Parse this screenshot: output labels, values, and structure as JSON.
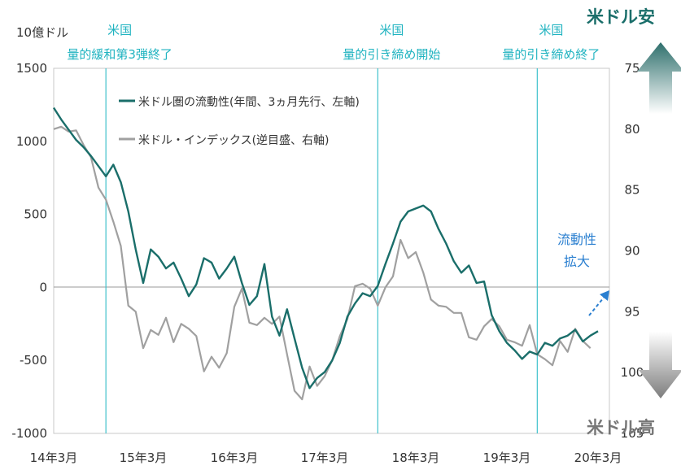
{
  "chart_data": {
    "type": "line",
    "left_unit_label": "10億ドル",
    "x_tick_labels": [
      "14年3月",
      "15年3月",
      "16年3月",
      "17年3月",
      "18年3月",
      "19年3月",
      "20年3月"
    ],
    "x_tick_dates": [
      "2014-03",
      "2015-03",
      "2016-03",
      "2017-03",
      "2018-03",
      "2019-03",
      "2020-03"
    ],
    "left_axis": {
      "min": -1000,
      "max": 1500,
      "ticks": [
        -1000,
        -500,
        0,
        500,
        1000,
        1500
      ]
    },
    "right_axis": {
      "min": 75,
      "max": 105,
      "inverted": true,
      "ticks": [
        75,
        80,
        85,
        90,
        95,
        100,
        105
      ]
    },
    "grid": "zero-line only",
    "legend_position": "top-left",
    "events": [
      {
        "date": "2014-10",
        "line1": "米国",
        "line2": "量的緩和第3弾終了"
      },
      {
        "date": "2017-10",
        "line1": "米国",
        "line2": "量的引き締め開始"
      },
      {
        "date": "2019-07",
        "line1": "米国",
        "line2": "量的引き締め終了"
      }
    ],
    "series": [
      {
        "name": "米ドル圏の流動性(年間、3ヵ月先行、左軸)",
        "axis": "left",
        "color": "#1a6e6a",
        "points": [
          [
            "2014-03",
            1230
          ],
          [
            "2014-04",
            1150
          ],
          [
            "2014-05",
            1080
          ],
          [
            "2014-06",
            1010
          ],
          [
            "2014-07",
            960
          ],
          [
            "2014-08",
            900
          ],
          [
            "2014-09",
            830
          ],
          [
            "2014-10",
            760
          ],
          [
            "2014-11",
            840
          ],
          [
            "2014-12",
            720
          ],
          [
            "2015-01",
            520
          ],
          [
            "2015-02",
            260
          ],
          [
            "2015-03",
            30
          ],
          [
            "2015-04",
            260
          ],
          [
            "2015-05",
            210
          ],
          [
            "2015-06",
            130
          ],
          [
            "2015-07",
            170
          ],
          [
            "2015-08",
            60
          ],
          [
            "2015-09",
            -60
          ],
          [
            "2015-10",
            20
          ],
          [
            "2015-11",
            200
          ],
          [
            "2015-12",
            170
          ],
          [
            "2016-01",
            60
          ],
          [
            "2016-02",
            130
          ],
          [
            "2016-03",
            210
          ],
          [
            "2016-04",
            30
          ],
          [
            "2016-05",
            -120
          ],
          [
            "2016-06",
            -60
          ],
          [
            "2016-07",
            160
          ],
          [
            "2016-08",
            -200
          ],
          [
            "2016-09",
            -330
          ],
          [
            "2016-10",
            -150
          ],
          [
            "2016-11",
            -350
          ],
          [
            "2016-12",
            -550
          ],
          [
            "2017-01",
            -690
          ],
          [
            "2017-02",
            -620
          ],
          [
            "2017-03",
            -580
          ],
          [
            "2017-04",
            -500
          ],
          [
            "2017-05",
            -380
          ],
          [
            "2017-06",
            -200
          ],
          [
            "2017-07",
            -110
          ],
          [
            "2017-08",
            -40
          ],
          [
            "2017-09",
            -60
          ],
          [
            "2017-10",
            10
          ],
          [
            "2017-11",
            160
          ],
          [
            "2017-12",
            300
          ],
          [
            "2018-01",
            450
          ],
          [
            "2018-02",
            520
          ],
          [
            "2018-03",
            540
          ],
          [
            "2018-04",
            560
          ],
          [
            "2018-05",
            520
          ],
          [
            "2018-06",
            400
          ],
          [
            "2018-07",
            300
          ],
          [
            "2018-08",
            180
          ],
          [
            "2018-09",
            100
          ],
          [
            "2018-10",
            150
          ],
          [
            "2018-11",
            30
          ],
          [
            "2018-12",
            40
          ],
          [
            "2019-01",
            -190
          ],
          [
            "2019-02",
            -300
          ],
          [
            "2019-03",
            -380
          ],
          [
            "2019-04",
            -430
          ],
          [
            "2019-05",
            -490
          ],
          [
            "2019-06",
            -440
          ],
          [
            "2019-07",
            -460
          ],
          [
            "2019-08",
            -380
          ],
          [
            "2019-09",
            -400
          ],
          [
            "2019-10",
            -350
          ],
          [
            "2019-11",
            -330
          ],
          [
            "2019-12",
            -290
          ],
          [
            "2020-01",
            -370
          ],
          [
            "2020-02",
            -330
          ],
          [
            "2020-03",
            -300
          ]
        ]
      },
      {
        "name": "米ドル・インデックス(逆目盛、右軸)",
        "axis": "right",
        "color": "#a0a0a0",
        "points": [
          [
            "2014-03",
            80.0
          ],
          [
            "2014-04",
            79.8
          ],
          [
            "2014-05",
            80.2
          ],
          [
            "2014-06",
            80.1
          ],
          [
            "2014-07",
            81.3
          ],
          [
            "2014-08",
            82.3
          ],
          [
            "2014-09",
            84.8
          ],
          [
            "2014-10",
            85.8
          ],
          [
            "2014-11",
            87.6
          ],
          [
            "2014-12",
            89.6
          ],
          [
            "2015-01",
            94.5
          ],
          [
            "2015-02",
            95.0
          ],
          [
            "2015-03",
            98.0
          ],
          [
            "2015-04",
            96.5
          ],
          [
            "2015-05",
            96.9
          ],
          [
            "2015-06",
            95.5
          ],
          [
            "2015-07",
            97.5
          ],
          [
            "2015-08",
            96.0
          ],
          [
            "2015-09",
            96.4
          ],
          [
            "2015-10",
            97.0
          ],
          [
            "2015-11",
            99.9
          ],
          [
            "2015-12",
            98.7
          ],
          [
            "2016-01",
            99.6
          ],
          [
            "2016-02",
            98.4
          ],
          [
            "2016-03",
            94.6
          ],
          [
            "2016-04",
            93.1
          ],
          [
            "2016-05",
            95.9
          ],
          [
            "2016-06",
            96.1
          ],
          [
            "2016-07",
            95.5
          ],
          [
            "2016-08",
            96.0
          ],
          [
            "2016-09",
            95.4
          ],
          [
            "2016-10",
            98.5
          ],
          [
            "2016-11",
            101.5
          ],
          [
            "2016-12",
            102.2
          ],
          [
            "2017-01",
            99.5
          ],
          [
            "2017-02",
            101.1
          ],
          [
            "2017-03",
            100.3
          ],
          [
            "2017-04",
            99.0
          ],
          [
            "2017-05",
            97.0
          ],
          [
            "2017-06",
            95.6
          ],
          [
            "2017-07",
            92.9
          ],
          [
            "2017-08",
            92.7
          ],
          [
            "2017-09",
            93.1
          ],
          [
            "2017-10",
            94.5
          ],
          [
            "2017-11",
            93.0
          ],
          [
            "2017-12",
            92.1
          ],
          [
            "2018-01",
            89.1
          ],
          [
            "2018-02",
            90.6
          ],
          [
            "2018-03",
            90.1
          ],
          [
            "2018-04",
            91.8
          ],
          [
            "2018-05",
            94.0
          ],
          [
            "2018-06",
            94.5
          ],
          [
            "2018-07",
            94.6
          ],
          [
            "2018-08",
            95.1
          ],
          [
            "2018-09",
            95.1
          ],
          [
            "2018-10",
            97.1
          ],
          [
            "2018-11",
            97.3
          ],
          [
            "2018-12",
            96.2
          ],
          [
            "2019-01",
            95.6
          ],
          [
            "2019-02",
            96.2
          ],
          [
            "2019-03",
            97.3
          ],
          [
            "2019-04",
            97.5
          ],
          [
            "2019-05",
            97.8
          ],
          [
            "2019-06",
            96.1
          ],
          [
            "2019-07",
            98.5
          ],
          [
            "2019-08",
            98.9
          ],
          [
            "2019-09",
            99.4
          ],
          [
            "2019-10",
            97.4
          ],
          [
            "2019-11",
            98.3
          ],
          [
            "2019-12",
            96.4
          ],
          [
            "2020-01",
            97.4
          ],
          [
            "2020-02",
            98.0
          ]
        ]
      }
    ]
  },
  "arrow_labels": {
    "top": "米ドル安",
    "bottom": "米ドル高",
    "top_color": "#1a6e6a",
    "bottom_color": "#777777"
  },
  "annotation": {
    "line1": "流動性",
    "line2": "拡大",
    "color": "#2a7fd0"
  }
}
